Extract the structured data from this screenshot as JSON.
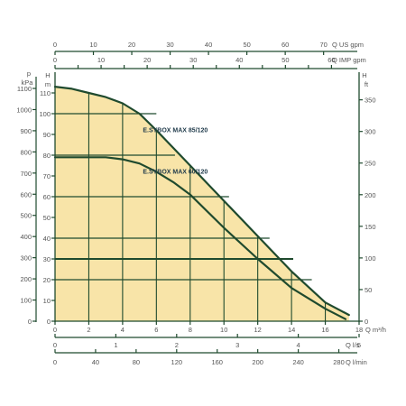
{
  "chart_data": {
    "type": "line",
    "colors": {
      "fill": "#f8e4a8",
      "curve": "#1f4a2e",
      "axis": "#1f4a2e",
      "grid": "#1f4a2e",
      "tick_text": "#555555",
      "label_text": "#1f3a4a"
    },
    "plot": {
      "grid": true,
      "shaded_envelope": true
    },
    "axes": {
      "x_main": {
        "unit_label": "Q m³/h",
        "range": [
          0,
          18
        ],
        "tick_values": [
          0,
          2,
          4,
          6,
          8,
          10,
          12,
          14,
          16,
          18
        ],
        "tick_labels": [
          "0",
          "2",
          "4",
          "6",
          "8",
          "10",
          "12",
          "14",
          "16",
          "18"
        ]
      },
      "x_us_gpm": {
        "unit_label": "Q US gpm",
        "tick_values": [
          0,
          10,
          20,
          30,
          40,
          50,
          60,
          70
        ],
        "tick_labels": [
          "0",
          "10",
          "20",
          "30",
          "40",
          "50",
          "60",
          "70"
        ]
      },
      "x_imp_gpm": {
        "unit_label": "Q IMP gpm",
        "tick_values": [
          0,
          5,
          10,
          15,
          20,
          25,
          30,
          35,
          40,
          45,
          50,
          55,
          60
        ],
        "tick_labels": [
          "0",
          "",
          "10",
          "",
          "20",
          "",
          "30",
          "",
          "40",
          "",
          "50",
          "",
          "60"
        ]
      },
      "x_ls": {
        "unit_label": "Q l/s",
        "tick_values": [
          0,
          1,
          2,
          3,
          4,
          5
        ],
        "tick_labels": [
          "0",
          "1",
          "2",
          "3",
          "4",
          "5"
        ]
      },
      "x_lmin": {
        "unit_label": "Q l/min",
        "tick_values": [
          0,
          40,
          80,
          120,
          160,
          200,
          240,
          280
        ],
        "tick_labels": [
          "0",
          "40",
          "80",
          "120",
          "160",
          "200",
          "240",
          "280"
        ]
      },
      "y_m": {
        "unit_label_top": "H",
        "unit_label_bottom": "m",
        "range": [
          0,
          120
        ],
        "tick_values": [
          0,
          10,
          20,
          30,
          40,
          50,
          60,
          70,
          80,
          90,
          100,
          110
        ],
        "tick_labels": [
          "0",
          "10",
          "20",
          "30",
          "40",
          "50",
          "60",
          "70",
          "80",
          "90",
          "100",
          "110"
        ]
      },
      "y_kpa": {
        "unit_label_top": "p",
        "unit_label_bottom": "kPa",
        "tick_values": [
          0,
          100,
          200,
          300,
          400,
          500,
          600,
          700,
          800,
          900,
          1000,
          1100
        ],
        "tick_labels": [
          "0",
          "100",
          "200",
          "300",
          "400",
          "500",
          "600",
          "700",
          "800",
          "900",
          "1000",
          "1100"
        ]
      },
      "y_ft": {
        "unit_label_top": "H",
        "unit_label_bottom": "ft",
        "tick_values": [
          0,
          50,
          100,
          150,
          200,
          250,
          300,
          350
        ],
        "tick_labels": [
          "0",
          "50",
          "100",
          "150",
          "200",
          "250",
          "300",
          "350"
        ]
      }
    },
    "series": [
      {
        "name": "E.SYBOX MAX 85/120",
        "x": [
          0,
          1,
          2,
          3,
          4,
          5,
          6,
          8,
          10,
          12,
          14,
          16,
          17.4
        ],
        "y": [
          113,
          112,
          110,
          108,
          105,
          100,
          92,
          75,
          58,
          41,
          24,
          9,
          3
        ]
      },
      {
        "name": "E.SYBOX MAX 60/120",
        "x": [
          0,
          2,
          3,
          4,
          5,
          6,
          7,
          8,
          10,
          12,
          14,
          16,
          17.2
        ],
        "y": [
          79,
          79,
          79,
          78,
          76,
          72,
          67,
          61,
          45,
          30,
          16,
          6,
          1
        ]
      }
    ],
    "grid_lines": [
      {
        "y": 100,
        "x_end": 6.0
      },
      {
        "y": 80,
        "x_end": 7.1
      },
      {
        "y": 60,
        "x_end": 10.3
      },
      {
        "y": 40,
        "x_end": 12.7
      },
      {
        "y": 30,
        "x_end": 14.1
      },
      {
        "y": 20,
        "x_end": 15.2
      }
    ],
    "annotations": [
      {
        "text": "E.SYBOX MAX 85/120",
        "x": 5.2,
        "y": 91
      },
      {
        "text": "E.SYBOX MAX 60/120",
        "x": 5.2,
        "y": 71
      }
    ]
  }
}
